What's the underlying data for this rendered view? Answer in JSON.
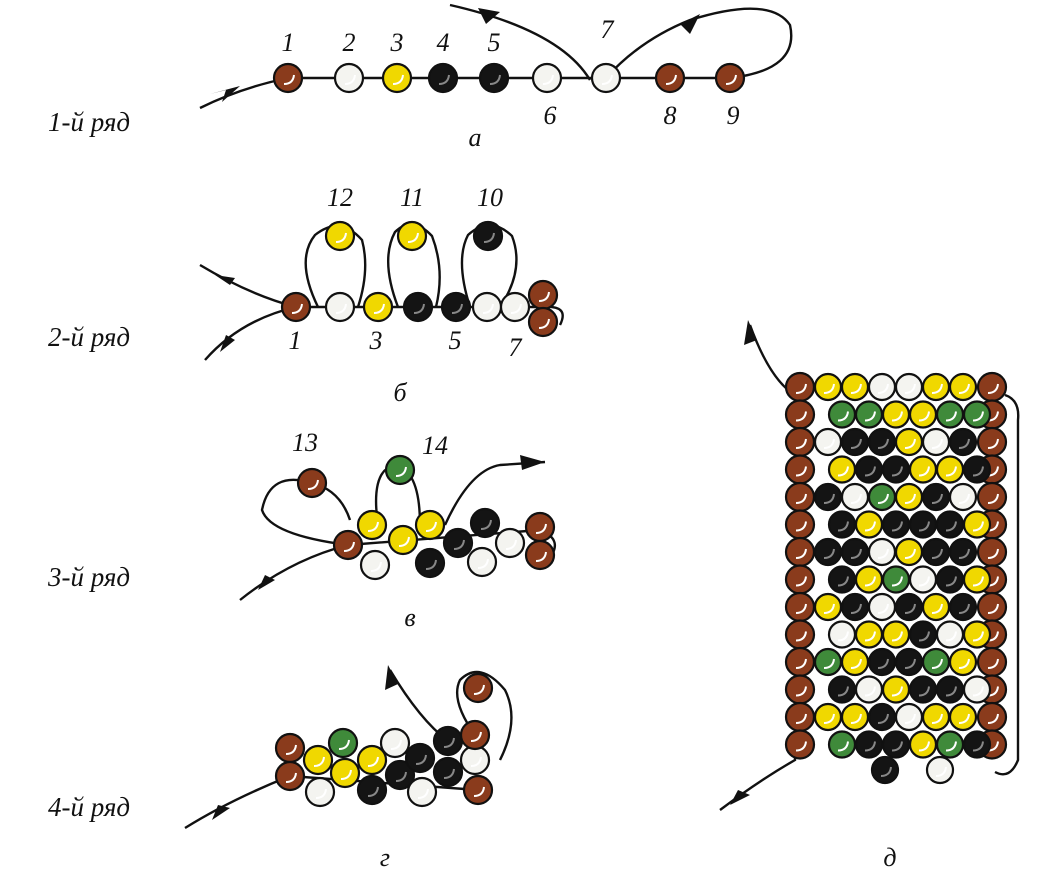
{
  "rows": [
    {
      "label": "1-й ряд",
      "letter": "а",
      "bead_labels": [
        "1",
        "2",
        "3",
        "4",
        "5",
        "6",
        "7",
        "8",
        "9"
      ]
    },
    {
      "label": "2-й ряд",
      "letter": "б",
      "bead_labels": [
        "12",
        "11",
        "10",
        "1",
        "3",
        "5",
        "7"
      ]
    },
    {
      "label": "3-й ряд",
      "letter": "в",
      "bead_labels": [
        "13",
        "14"
      ]
    },
    {
      "label": "4-й ряд",
      "letter": "г"
    }
  ],
  "panel_e": {
    "letter": "д"
  }
}
